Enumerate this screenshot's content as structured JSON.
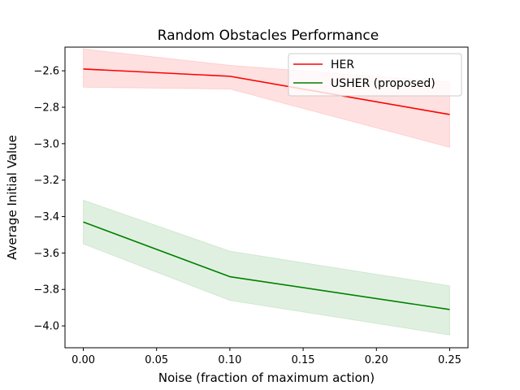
{
  "chart_data": {
    "type": "line",
    "title": "Random Obstacles Performance",
    "xlabel": "Noise (fraction of maximum action)",
    "ylabel": "Average Initial Value",
    "x": [
      0.0,
      0.1,
      0.25
    ],
    "xlim": [
      -0.0125,
      0.2625
    ],
    "ylim": [
      -4.12,
      -2.47
    ],
    "xticks": [
      0.0,
      0.05,
      0.1,
      0.15,
      0.2,
      0.25
    ],
    "xtick_labels": [
      "0.00",
      "0.05",
      "0.10",
      "0.15",
      "0.20",
      "0.25"
    ],
    "yticks": [
      -4.0,
      -3.8,
      -3.6,
      -3.4,
      -3.2,
      -3.0,
      -2.8,
      -2.6
    ],
    "ytick_labels": [
      "−4.0",
      "−3.8",
      "−3.6",
      "−3.4",
      "−3.2",
      "−3.0",
      "−2.8",
      "−2.6"
    ],
    "grid": false,
    "legend_position": "top-right",
    "series": [
      {
        "name": "HER",
        "color": "#ff0000",
        "band_color": "#ff0000",
        "values": [
          -2.59,
          -2.63,
          -2.84
        ],
        "lower": [
          -2.69,
          -2.7,
          -3.02
        ],
        "upper": [
          -2.48,
          -2.57,
          -2.66
        ]
      },
      {
        "name": "USHER (proposed)",
        "color": "#008000",
        "band_color": "#008000",
        "values": [
          -3.43,
          -3.73,
          -3.91
        ],
        "lower": [
          -3.55,
          -3.86,
          -4.05
        ],
        "upper": [
          -3.31,
          -3.59,
          -3.78
        ]
      }
    ]
  }
}
